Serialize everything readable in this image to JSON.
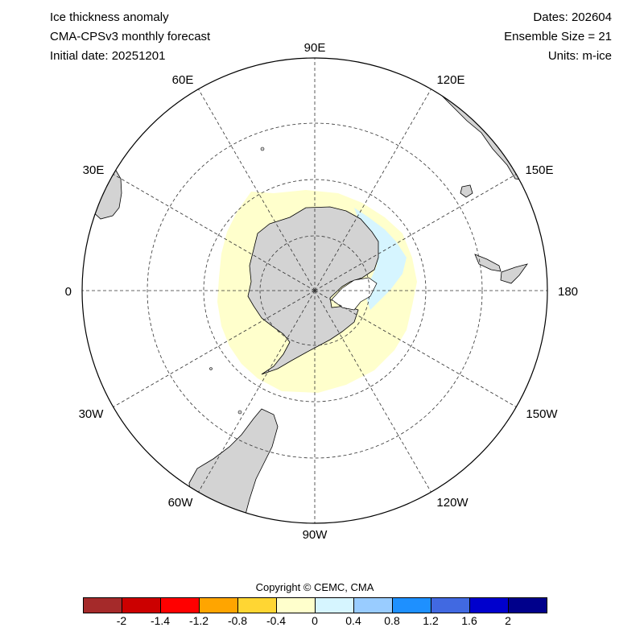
{
  "header": {
    "title": "Ice thickness anomaly",
    "model": "CMA-CPSv3 monthly forecast",
    "initial_date": "Initial date: 20251201",
    "dates": "Dates: 202604",
    "ensemble": "Ensemble Size = 21",
    "units": "Units: m-ice"
  },
  "map": {
    "projection": "south polar stereographic",
    "longitude_labels": {
      "lon_90E": "90E",
      "lon_120E": "120E",
      "lon_150E": "150E",
      "lon_180": "180",
      "lon_150W": "150W",
      "lon_120W": "120W",
      "lon_90W": "90W",
      "lon_60W": "60W",
      "lon_30W": "30W",
      "lon_0": "0",
      "lon_30E": "30E",
      "lon_60E": "60E"
    },
    "land_color": "#d3d3d3",
    "ocean_color": "#ffffff",
    "anomaly_colors": {
      "slight_positive": "#ffffcc",
      "slight_negative": "#d6f5ff"
    }
  },
  "copyright": "Copyright © CEMC, CMA",
  "colorbar": {
    "colors": [
      "#a52a2a",
      "#cc0000",
      "#ff0000",
      "#ffa500",
      "#ffd633",
      "#ffffcc",
      "#d6f5ff",
      "#99ccff",
      "#1e90ff",
      "#4169e1",
      "#0000cd",
      "#00008b"
    ],
    "labels": [
      "-2",
      "-1.4",
      "-1.2",
      "-0.8",
      "-0.4",
      "0",
      "0.4",
      "0.8",
      "1.2",
      "1.6",
      "2"
    ]
  }
}
